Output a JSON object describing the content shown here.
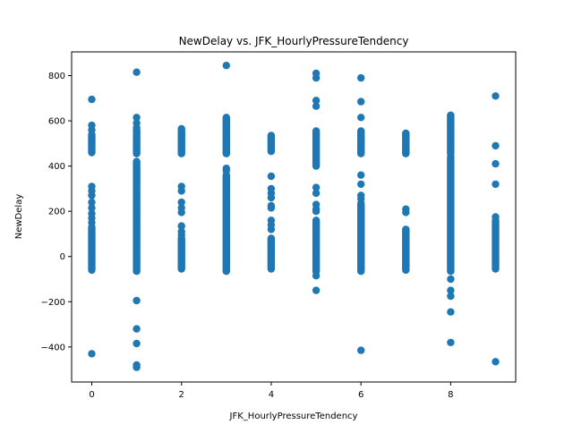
{
  "chart_data": {
    "type": "scatter",
    "title": "NewDelay vs. JFK_HourlyPressureTendency",
    "xlabel": "JFK_HourlyPressureTendency",
    "ylabel": "NewDelay",
    "xlim": [
      -0.45,
      9.45
    ],
    "ylim": [
      -555,
      905
    ],
    "x_ticks": [
      0,
      2,
      4,
      6,
      8
    ],
    "y_ticks": [
      -400,
      -200,
      0,
      200,
      400,
      600,
      800
    ],
    "y_tick_labels": [
      "−400",
      "−200",
      "0",
      "200",
      "400",
      "600",
      "800"
    ],
    "grid": false,
    "legend": "none",
    "marker_color": "#1f77b4",
    "columns": [
      {
        "x": 0,
        "band": [
          -60,
          130
        ],
        "upper": [
          460,
          540
        ],
        "points": [
          695,
          580,
          560,
          310,
          290,
          270,
          240,
          215,
          190,
          170,
          150,
          -430
        ]
      },
      {
        "x": 1,
        "band": [
          -65,
          420
        ],
        "upper": [
          455,
          560
        ],
        "points": [
          815,
          615,
          590,
          570,
          -195,
          -320,
          -385,
          -480,
          -490
        ]
      },
      {
        "x": 2,
        "band": [
          -55,
          80
        ],
        "upper": [
          455,
          560
        ],
        "points": [
          565,
          310,
          290,
          240,
          215,
          195,
          135,
          110,
          95
        ]
      },
      {
        "x": 3,
        "band": [
          -65,
          360
        ],
        "upper": [
          455,
          615
        ],
        "points": [
          845,
          390,
          380
        ]
      },
      {
        "x": 4,
        "band": [
          -55,
          80
        ],
        "upper": [
          465,
          535
        ],
        "points": [
          355,
          300,
          280,
          260,
          225,
          215,
          160,
          140,
          120
        ]
      },
      {
        "x": 5,
        "band": [
          -65,
          160
        ],
        "upper": [
          400,
          555
        ],
        "points": [
          810,
          790,
          690,
          665,
          305,
          280,
          230,
          210,
          200,
          -85,
          -150
        ]
      },
      {
        "x": 6,
        "band": [
          -65,
          235
        ],
        "upper": [
          455,
          555
        ],
        "points": [
          790,
          685,
          615,
          360,
          320,
          270,
          255,
          -415
        ]
      },
      {
        "x": 7,
        "band": [
          -60,
          120
        ],
        "upper": [
          455,
          545
        ],
        "points": [
          210,
          195
        ]
      },
      {
        "x": 8,
        "band": [
          -65,
          440
        ],
        "upper": [
          455,
          625
        ],
        "points": [
          600,
          580,
          -100,
          -150,
          -175,
          -245,
          -380
        ]
      },
      {
        "x": 9,
        "band": [
          -55,
          160
        ],
        "upper": [],
        "points": [
          710,
          490,
          410,
          320,
          175,
          -465
        ]
      }
    ]
  }
}
